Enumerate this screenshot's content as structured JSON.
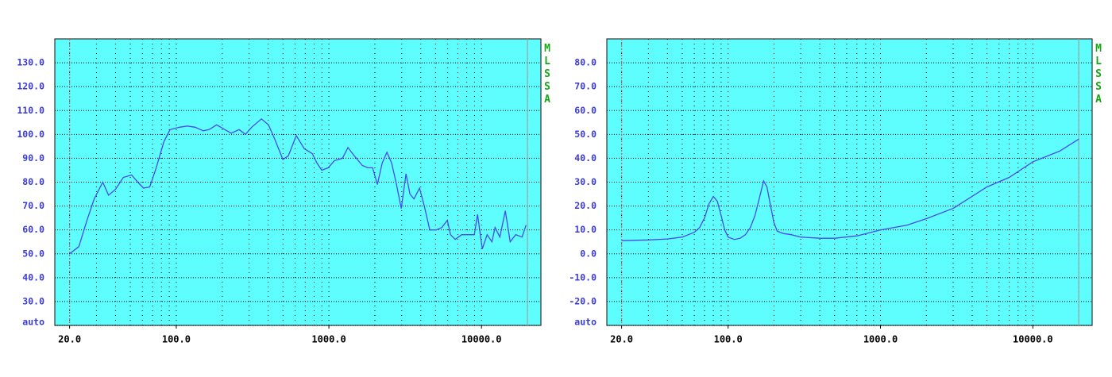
{
  "chart_data": [
    {
      "type": "line",
      "xscale": "log",
      "side_label": "MLSSA",
      "background": "#5ffefe",
      "xlim": [
        16,
        24500
      ],
      "ylim": [
        20,
        140
      ],
      "xticks": [
        {
          "value": 20,
          "label": "20.0"
        },
        {
          "value": 100,
          "label": "100.0"
        },
        {
          "value": 1000,
          "label": "1000.0"
        },
        {
          "value": 10000,
          "label": "10000.0"
        }
      ],
      "yticks": [
        {
          "value": 20,
          "label": "auto"
        },
        {
          "value": 30,
          "label": "30.0"
        },
        {
          "value": 40,
          "label": "40.0"
        },
        {
          "value": 50,
          "label": "50.0"
        },
        {
          "value": 60,
          "label": "60.0"
        },
        {
          "value": 70,
          "label": "70.0"
        },
        {
          "value": 80,
          "label": "80.0"
        },
        {
          "value": 90,
          "label": "90.0"
        },
        {
          "value": 100,
          "label": "100.0"
        },
        {
          "value": 110,
          "label": "110.0"
        },
        {
          "value": 120,
          "label": "120.0"
        },
        {
          "value": 130,
          "label": "130.0"
        }
      ],
      "cursors": [
        {
          "x": 20,
          "color": "#c86464"
        },
        {
          "x": 20000,
          "color": "#a0a0a0"
        }
      ],
      "x": [
        20,
        23,
        26,
        29,
        33,
        36,
        40,
        45,
        51,
        56,
        61,
        67,
        73,
        83,
        91,
        105,
        118,
        133,
        150,
        164,
        184,
        208,
        229,
        258,
        284,
        312,
        361,
        402,
        442,
        499,
        542,
        611,
        690,
        778,
        835,
        898,
        989,
        1087,
        1226,
        1334,
        1468,
        1655,
        1800,
        1934,
        2078,
        2234,
        2400,
        2579,
        2772,
        2979,
        3201,
        3398,
        3608,
        3924,
        4217,
        4584,
        5046,
        5490,
        5970,
        6266,
        6734,
        7413,
        8349,
        8974,
        9415,
        10120,
        10880,
        11690,
        12270,
        13190,
        14330,
        15400,
        16750,
        18440,
        19590
      ],
      "series": [
        {
          "color": "#4a4ae6",
          "values": [
            50,
            53,
            64,
            73,
            80,
            74.5,
            77,
            82,
            83,
            80,
            77.5,
            78,
            85,
            97,
            102,
            103,
            103.5,
            103,
            101.5,
            102,
            104,
            102,
            100.5,
            102,
            100,
            103,
            106.5,
            104,
            98,
            89.5,
            91,
            99.5,
            94,
            92,
            88,
            85,
            86,
            89,
            90,
            94.5,
            91,
            87,
            86,
            86,
            79,
            88,
            92.5,
            88,
            79,
            69,
            83.5,
            75,
            73,
            77.5,
            70,
            60,
            60,
            61,
            64,
            58,
            56,
            58,
            58,
            58,
            66.5,
            52,
            58,
            55,
            61,
            57,
            68,
            55,
            58,
            57,
            62
          ]
        }
      ]
    },
    {
      "type": "line",
      "xscale": "log",
      "side_label": "MLSSA",
      "background": "#5ffefe",
      "xlim": [
        16,
        24500
      ],
      "ylim": [
        -30,
        90
      ],
      "xticks": [
        {
          "value": 20,
          "label": "20.0"
        },
        {
          "value": 100,
          "label": "100.0"
        },
        {
          "value": 1000,
          "label": "1000.0"
        },
        {
          "value": 10000,
          "label": "10000.0"
        }
      ],
      "yticks": [
        {
          "value": -30,
          "label": "auto"
        },
        {
          "value": -20,
          "label": "-20.0"
        },
        {
          "value": -10,
          "label": "-10.0"
        },
        {
          "value": 0,
          "label": "0.0"
        },
        {
          "value": 10,
          "label": "10.0"
        },
        {
          "value": 20,
          "label": "20.0"
        },
        {
          "value": 30,
          "label": "30.0"
        },
        {
          "value": 40,
          "label": "40.0"
        },
        {
          "value": 50,
          "label": "50.0"
        },
        {
          "value": 60,
          "label": "60.0"
        },
        {
          "value": 70,
          "label": "70.0"
        },
        {
          "value": 80,
          "label": "80.0"
        }
      ],
      "cursors": [
        {
          "x": 20,
          "color": "#c86464"
        },
        {
          "x": 20000,
          "color": "#a0a0a0"
        }
      ],
      "x": [
        20,
        30,
        40,
        50,
        60,
        65,
        70,
        75,
        80,
        85,
        90,
        95,
        100,
        110,
        120,
        130,
        140,
        150,
        160,
        171,
        180,
        190,
        200,
        210,
        230,
        260,
        300,
        400,
        500,
        700,
        1000,
        1500,
        2000,
        3000,
        5000,
        7000,
        10000,
        15000,
        20000
      ],
      "series": [
        {
          "color": "#4a4ae6",
          "values": [
            5.5,
            5.8,
            6.2,
            7,
            9,
            11,
            15,
            21,
            24,
            22,
            16,
            10,
            7,
            6,
            6.5,
            8,
            11,
            16,
            23,
            30.5,
            28,
            20,
            13,
            9.5,
            8.5,
            8,
            7,
            6.5,
            6.5,
            7.5,
            10,
            12,
            14.7,
            19,
            28,
            32,
            38.5,
            43,
            48
          ]
        }
      ]
    }
  ]
}
